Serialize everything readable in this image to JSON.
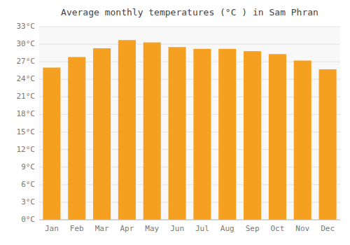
{
  "chart_data": {
    "type": "bar",
    "title": "Average monthly temperatures (°C ) in Sam Phran",
    "categories": [
      "Jan",
      "Feb",
      "Mar",
      "Apr",
      "May",
      "Jun",
      "Jul",
      "Aug",
      "Sep",
      "Oct",
      "Nov",
      "Dec"
    ],
    "values": [
      26.0,
      27.8,
      29.3,
      30.7,
      30.3,
      29.5,
      29.2,
      29.2,
      28.8,
      28.3,
      27.2,
      25.7
    ],
    "color": "#F5A020",
    "ylim": [
      0,
      33
    ],
    "yticks": [
      {
        "value": 0,
        "label": "0°C"
      },
      {
        "value": 3,
        "label": "3°C"
      },
      {
        "value": 6,
        "label": "6°C"
      },
      {
        "value": 9,
        "label": "9°C"
      },
      {
        "value": 12,
        "label": "12°C"
      },
      {
        "value": 15,
        "label": "15°C"
      },
      {
        "value": 18,
        "label": "18°C"
      },
      {
        "value": 21,
        "label": "21°C"
      },
      {
        "value": 24,
        "label": "24°C"
      },
      {
        "value": 27,
        "label": "27°C"
      },
      {
        "value": 30,
        "label": "30°C"
      },
      {
        "value": 33,
        "label": "33°C"
      }
    ],
    "grid": true
  }
}
